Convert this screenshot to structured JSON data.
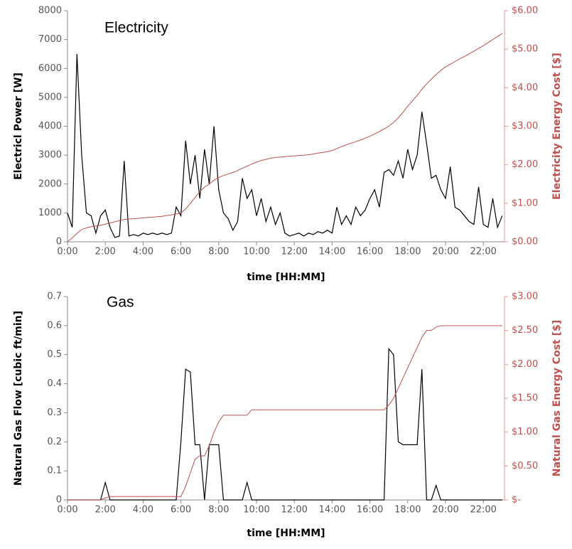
{
  "chart_data": [
    {
      "type": "line",
      "title": "Electricity",
      "xlabel": "time [HH:MM]",
      "ylabel": "Electricl Power [W]",
      "y2label": "Electricity Energy Cost [$]",
      "x": [
        0,
        0.25,
        0.5,
        0.75,
        1,
        1.25,
        1.5,
        1.75,
        2,
        2.25,
        2.5,
        2.75,
        3,
        3.25,
        3.5,
        3.75,
        4,
        4.25,
        4.5,
        4.75,
        5,
        5.25,
        5.5,
        5.75,
        6,
        6.25,
        6.5,
        6.75,
        7,
        7.25,
        7.5,
        7.75,
        8,
        8.25,
        8.5,
        8.75,
        9,
        9.25,
        9.5,
        9.75,
        10,
        10.25,
        10.5,
        10.75,
        11,
        11.25,
        11.5,
        11.75,
        12,
        12.25,
        12.5,
        12.75,
        13,
        13.25,
        13.5,
        13.75,
        14,
        14.25,
        14.5,
        14.75,
        15,
        15.25,
        15.5,
        15.75,
        16,
        16.25,
        16.5,
        16.75,
        17,
        17.25,
        17.5,
        17.75,
        18,
        18.25,
        18.5,
        18.75,
        19,
        19.25,
        19.5,
        19.75,
        20,
        20.25,
        20.5,
        20.75,
        21,
        21.25,
        21.5,
        21.75,
        22,
        22.25,
        22.5,
        22.75,
        23
      ],
      "series": [
        {
          "color": "#000000",
          "values": [
            1000,
            500,
            6500,
            3000,
            1000,
            900,
            300,
            900,
            1100,
            500,
            150,
            200,
            2800,
            200,
            250,
            200,
            300,
            250,
            300,
            250,
            300,
            250,
            300,
            1200,
            900,
            3500,
            2000,
            3000,
            1500,
            3200,
            2000,
            4000,
            1800,
            1000,
            800,
            400,
            700,
            2200,
            1500,
            1800,
            900,
            1500,
            700,
            1200,
            600,
            1000,
            300,
            200,
            250,
            300,
            200,
            300,
            250,
            350,
            300,
            400,
            300,
            1200,
            600,
            900,
            600,
            1200,
            900,
            1100,
            1500,
            1800,
            1200,
            2400,
            2500,
            2300,
            2800,
            2200,
            3200,
            2500,
            3000,
            4500,
            3400,
            2200,
            2300,
            1800,
            1500,
            2600,
            1200,
            1100,
            900,
            700,
            600,
            1900,
            600,
            500,
            1500,
            500,
            900
          ]
        },
        {
          "color": "#c0504d",
          "axis": "y2",
          "values": [
            0,
            0.1,
            0.22,
            0.32,
            0.36,
            0.39,
            0.41,
            0.43,
            0.46,
            0.49,
            0.52,
            0.55,
            0.58,
            0.59,
            0.6,
            0.61,
            0.62,
            0.63,
            0.64,
            0.65,
            0.66,
            0.68,
            0.7,
            0.72,
            0.75,
            0.85,
            1,
            1.15,
            1.3,
            1.42,
            1.5,
            1.6,
            1.67,
            1.72,
            1.76,
            1.8,
            1.85,
            1.91,
            1.96,
            2.02,
            2.07,
            2.11,
            2.14,
            2.17,
            2.19,
            2.2,
            2.21,
            2.22,
            2.23,
            2.24,
            2.25,
            2.26,
            2.28,
            2.3,
            2.32,
            2.34,
            2.37,
            2.42,
            2.47,
            2.52,
            2.56,
            2.6,
            2.64,
            2.69,
            2.74,
            2.8,
            2.86,
            2.93,
            3,
            3.1,
            3.22,
            3.36,
            3.52,
            3.66,
            3.8,
            3.96,
            4.1,
            4.22,
            4.34,
            4.45,
            4.54,
            4.61,
            4.68,
            4.75,
            4.81,
            4.88,
            4.95,
            5.02,
            5.09,
            5.17,
            5.25,
            5.33,
            5.41
          ]
        }
      ],
      "xlim": [
        0,
        23.12
      ],
      "xticks": [
        {
          "value": 0,
          "label": "0:00"
        },
        {
          "value": 2,
          "label": "2:00"
        },
        {
          "value": 4,
          "label": "4:00"
        },
        {
          "value": 6,
          "label": "6:00"
        },
        {
          "value": 8,
          "label": "8:00"
        },
        {
          "value": 10,
          "label": "10:00"
        },
        {
          "value": 12,
          "label": "12:00"
        },
        {
          "value": 14,
          "label": "14:00"
        },
        {
          "value": 16,
          "label": "16:00"
        },
        {
          "value": 18,
          "label": "18:00"
        },
        {
          "value": 20,
          "label": "20:00"
        },
        {
          "value": 22,
          "label": "22:00"
        }
      ],
      "ylim": [
        0,
        8000
      ],
      "yticks": [
        0,
        1000,
        2000,
        3000,
        4000,
        5000,
        6000,
        7000,
        8000
      ],
      "y2lim": [
        0,
        6
      ],
      "y2ticks": [
        {
          "value": 0,
          "label": "$0.00"
        },
        {
          "value": 1,
          "label": "$1.00"
        },
        {
          "value": 2,
          "label": "$2.00"
        },
        {
          "value": 3,
          "label": "$3.00"
        },
        {
          "value": 4,
          "label": "$4.00"
        },
        {
          "value": 5,
          "label": "$5.00"
        },
        {
          "value": 6,
          "label": "$6.00"
        }
      ]
    },
    {
      "type": "line",
      "title": "Gas",
      "xlabel": "time [HH:MM]",
      "ylabel": "Natural Gas Flow  [cubic ft/min]",
      "y2label": "Natural Gas Energy Cost [$]",
      "x": [
        0,
        0.25,
        0.5,
        0.75,
        1,
        1.25,
        1.5,
        1.75,
        2,
        2.25,
        2.5,
        2.75,
        3,
        3.25,
        3.5,
        3.75,
        4,
        4.25,
        4.5,
        4.75,
        5,
        5.25,
        5.5,
        5.75,
        6,
        6.25,
        6.5,
        6.75,
        7,
        7.25,
        7.5,
        7.75,
        8,
        8.25,
        8.5,
        8.75,
        9,
        9.25,
        9.5,
        9.75,
        10,
        10.25,
        10.5,
        10.75,
        11,
        11.25,
        11.5,
        11.75,
        12,
        12.25,
        12.5,
        12.75,
        13,
        13.25,
        13.5,
        13.75,
        14,
        14.25,
        14.5,
        14.75,
        15,
        15.25,
        15.5,
        15.75,
        16,
        16.25,
        16.5,
        16.75,
        17,
        17.25,
        17.5,
        17.75,
        18,
        18.25,
        18.5,
        18.75,
        19,
        19.25,
        19.5,
        19.75,
        20,
        20.25,
        20.5,
        20.75,
        21,
        21.25,
        21.5,
        21.75,
        22,
        22.25,
        22.5,
        22.75,
        23
      ],
      "series": [
        {
          "color": "#000000",
          "values": [
            0,
            0,
            0,
            0,
            0,
            0,
            0,
            0,
            0.06,
            0,
            0,
            0,
            0,
            0,
            0,
            0,
            0,
            0,
            0,
            0,
            0,
            0,
            0,
            0,
            0.2,
            0.45,
            0.44,
            0.19,
            0.19,
            0,
            0.19,
            0.19,
            0.19,
            0,
            0,
            0,
            0,
            0,
            0.06,
            0,
            0,
            0,
            0,
            0,
            0,
            0,
            0,
            0,
            0,
            0,
            0,
            0,
            0,
            0,
            0,
            0,
            0,
            0,
            0,
            0,
            0,
            0,
            0,
            0,
            0,
            0,
            0,
            0,
            0.52,
            0.5,
            0.2,
            0.19,
            0.19,
            0.19,
            0.19,
            0.45,
            0,
            0,
            0.05,
            0,
            0,
            0,
            0,
            0,
            0,
            0,
            0,
            0,
            0,
            0,
            0,
            0,
            0
          ]
        },
        {
          "color": "#c0504d",
          "axis": "y2",
          "values": [
            0,
            0,
            0,
            0,
            0,
            0,
            0,
            0,
            0.03,
            0.05,
            0.05,
            0.05,
            0.05,
            0.05,
            0.05,
            0.05,
            0.05,
            0.05,
            0.05,
            0.05,
            0.05,
            0.05,
            0.05,
            0.05,
            0.05,
            0.2,
            0.4,
            0.6,
            0.65,
            0.65,
            0.8,
            1,
            1.15,
            1.25,
            1.25,
            1.25,
            1.25,
            1.25,
            1.25,
            1.33,
            1.33,
            1.33,
            1.33,
            1.33,
            1.33,
            1.33,
            1.33,
            1.33,
            1.33,
            1.33,
            1.33,
            1.33,
            1.33,
            1.33,
            1.33,
            1.33,
            1.33,
            1.33,
            1.33,
            1.33,
            1.33,
            1.33,
            1.33,
            1.33,
            1.33,
            1.33,
            1.33,
            1.33,
            1.4,
            1.5,
            1.65,
            1.8,
            1.95,
            2.1,
            2.25,
            2.4,
            2.5,
            2.5,
            2.55,
            2.57,
            2.57,
            2.57,
            2.57,
            2.57,
            2.57,
            2.57,
            2.57,
            2.57,
            2.57,
            2.57,
            2.57,
            2.57,
            2.57
          ]
        }
      ],
      "xlim": [
        0,
        23.12
      ],
      "xticks": [
        {
          "value": 0,
          "label": "0:00"
        },
        {
          "value": 2,
          "label": "2:00"
        },
        {
          "value": 4,
          "label": "4:00"
        },
        {
          "value": 6,
          "label": "6:00"
        },
        {
          "value": 8,
          "label": "8:00"
        },
        {
          "value": 10,
          "label": "10:00"
        },
        {
          "value": 12,
          "label": "12:00"
        },
        {
          "value": 14,
          "label": "14:00"
        },
        {
          "value": 16,
          "label": "16:00"
        },
        {
          "value": 18,
          "label": "18:00"
        },
        {
          "value": 20,
          "label": "20:00"
        },
        {
          "value": 22,
          "label": "22:00"
        }
      ],
      "ylim": [
        0,
        0.7
      ],
      "yticks": [
        0,
        0.1,
        0.2,
        0.3,
        0.4,
        0.5,
        0.6,
        0.7
      ],
      "y2lim": [
        0,
        3
      ],
      "y2ticks": [
        {
          "value": 0,
          "label": "$-"
        },
        {
          "value": 0.5,
          "label": "$0.50"
        },
        {
          "value": 1,
          "label": "$1.00"
        },
        {
          "value": 1.5,
          "label": "$1.50"
        },
        {
          "value": 2,
          "label": "$2.00"
        },
        {
          "value": 2.5,
          "label": "$2.50"
        },
        {
          "value": 3,
          "label": "$3.00"
        }
      ]
    }
  ]
}
